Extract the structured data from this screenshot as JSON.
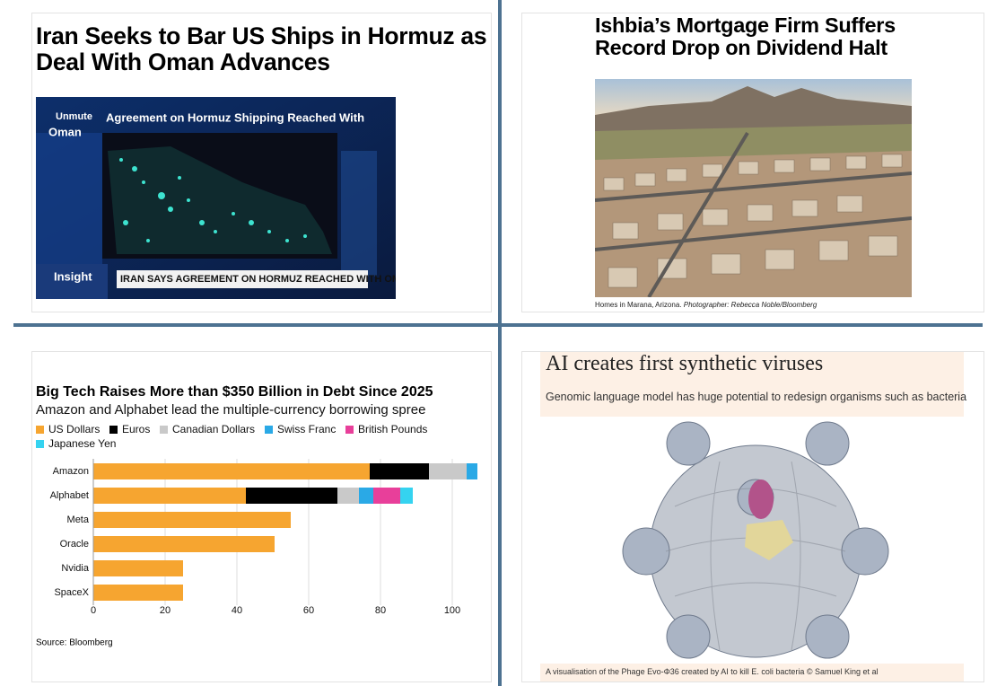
{
  "news_1": {
    "headline": "Iran Seeks to Bar US Ships in Hormuz as Deal With Oman Advances",
    "video": {
      "mute": "Unmute",
      "banner": "Agreement on Hormuz Shipping Reached With",
      "banner_end": "Oman",
      "show": "Insight",
      "ticker": "IRAN SAYS AGREEMENT ON HORMUZ REACHED WITH OMAN"
    }
  },
  "news_2": {
    "headline": "Ishbia’s Mortgage Firm Suffers Record Drop on Dividend Halt",
    "caption": {
      "text": "Homes in Marana, Arizona.",
      "credit": "Photographer: Rebecca Noble/Bloomberg"
    }
  },
  "chart_data": {
    "type": "stacked-bar-horizontal",
    "title": "Big Tech Raises More than $350 Billion in Debt Since 2025",
    "subtitle": "Amazon and Alphabet lead the multiple-currency borrowing spree",
    "categories": [
      "Amazon",
      "Alphabet",
      "Meta",
      "Oracle",
      "Nvidia",
      "SpaceX"
    ],
    "series": [
      {
        "name": "US Dollars",
        "color": "#f6a530",
        "values": [
          77,
          42.5,
          55,
          50.5,
          25,
          25
        ]
      },
      {
        "name": "Euros",
        "color": "#000000",
        "values": [
          16.5,
          25.5,
          null,
          null,
          null,
          null
        ]
      },
      {
        "name": "Canadian Dollars",
        "color": "#c9c9c9",
        "values": [
          10.5,
          6,
          null,
          null,
          null,
          null
        ]
      },
      {
        "name": "Swiss Franc",
        "color": "#2aa9e6",
        "values": [
          3,
          4,
          null,
          null,
          null,
          null
        ]
      },
      {
        "name": "British Pounds",
        "color": "#e83f9a",
        "values": [
          null,
          7.5,
          null,
          null,
          null,
          null
        ]
      },
      {
        "name": "Japanese Yen",
        "color": "#35d3f0",
        "values": [
          null,
          3.5,
          null,
          null,
          null,
          null
        ]
      }
    ],
    "xlim": [
      0,
      107
    ],
    "xticks": [
      0,
      20,
      40,
      60,
      80,
      100
    ],
    "grid": true,
    "source": "Source: Bloomberg"
  },
  "news_4": {
    "headline": "AI creates first synthetic viruses",
    "standfirst": "Genomic language model has huge potential to redesign organisms such as bacteria",
    "caption": "A visualisation of the Phage Evo-Φ36 created by AI to kill E. coli bacteria © Samuel King et al"
  }
}
